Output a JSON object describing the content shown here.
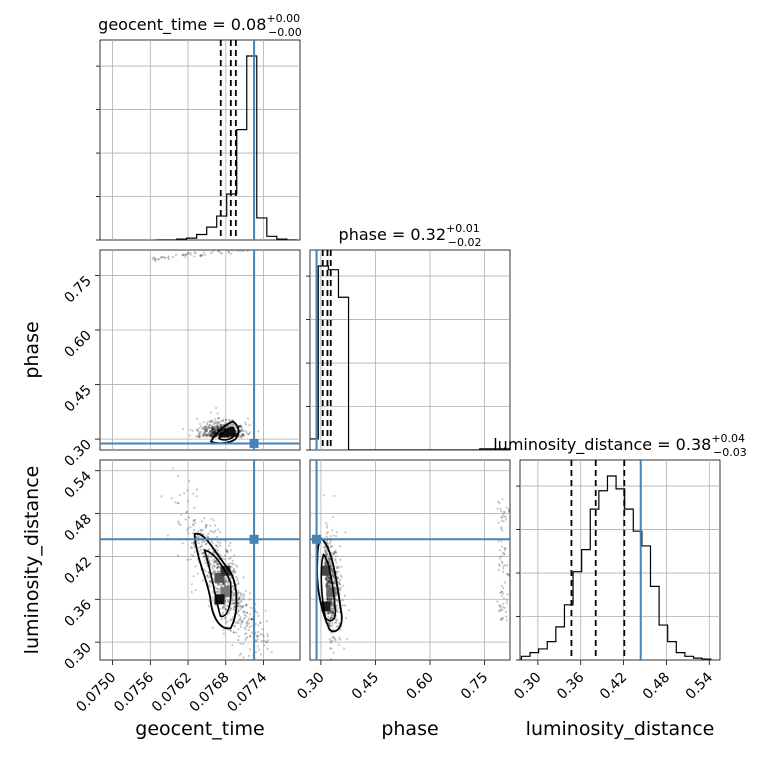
{
  "chart_data": {
    "type": "corner",
    "truth_color": "#4682b4",
    "grid": true,
    "parameters": [
      {
        "name": "geocent_time",
        "axis_label": "geocent_time",
        "range": [
          0.0748,
          0.07798
        ],
        "ticks": [
          "0.0750",
          "0.0756",
          "0.0762",
          "0.0768",
          "0.0774"
        ],
        "tick_values": [
          0.075,
          0.0756,
          0.0762,
          0.0768,
          0.0774
        ],
        "truth": 0.07725,
        "quantiles": [
          0.07672,
          0.07688,
          0.07696
        ],
        "title_main": "geocent_time = 0.08",
        "title_sup": "+0.00",
        "title_sub": "−0.00",
        "histogram": [
          0,
          0,
          0.005,
          0.01,
          0.03,
          0.07,
          0.13,
          0.25,
          0.6,
          1.0,
          0.12,
          0.02,
          0.005,
          0
        ]
      },
      {
        "name": "phase",
        "axis_label": "phase",
        "range": [
          0.27,
          0.82
        ],
        "ticks": [
          "0.30",
          "0.45",
          "0.60",
          "0.75"
        ],
        "tick_values": [
          0.3,
          0.45,
          0.6,
          0.75
        ],
        "truth": 0.288,
        "quantiles": [
          0.305,
          0.318,
          0.327
        ],
        "title_main": "phase = 0.32",
        "title_sup": "+0.01",
        "title_sub": "−0.02",
        "histogram": [
          0.06,
          1.0,
          0.98,
          0.83,
          0,
          0,
          0,
          0,
          0,
          0,
          0,
          0,
          0,
          0,
          0,
          0,
          0,
          0.006,
          0.006,
          0.006
        ]
      },
      {
        "name": "luminosity_distance",
        "axis_label": "luminosity_distance",
        "range": [
          0.275,
          0.555
        ],
        "ticks": [
          "0.30",
          "0.36",
          "0.42",
          "0.48",
          "0.54"
        ],
        "tick_values": [
          0.3,
          0.36,
          0.42,
          0.48,
          0.54
        ],
        "truth": 0.444,
        "quantiles": [
          0.347,
          0.381,
          0.421
        ],
        "title_main": "luminosity_distance = 0.38",
        "title_sup": "+0.04",
        "title_sub": "−0.03",
        "histogram": [
          0.02,
          0.04,
          0.06,
          0.1,
          0.18,
          0.3,
          0.48,
          0.6,
          0.82,
          0.92,
          1.0,
          0.93,
          0.82,
          0.7,
          0.62,
          0.4,
          0.19,
          0.1,
          0.04,
          0.02,
          0.01,
          0.005
        ]
      }
    ]
  }
}
